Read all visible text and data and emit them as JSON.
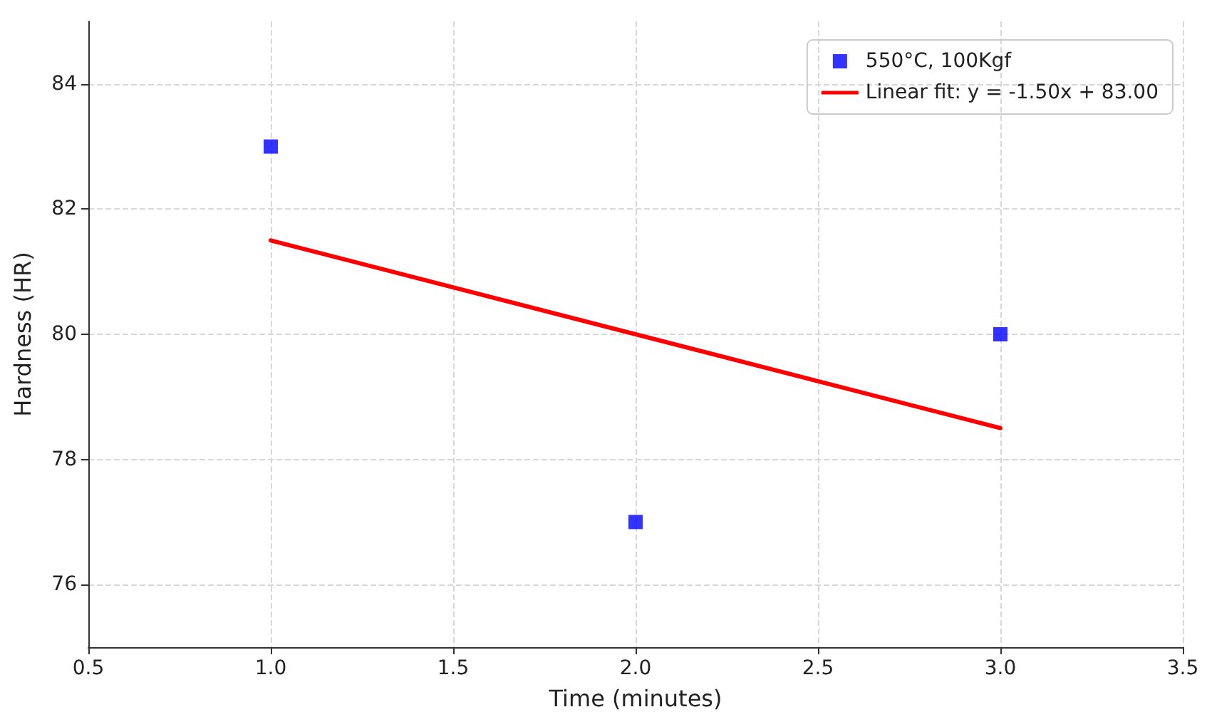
{
  "chart_data": {
    "type": "scatter",
    "xlabel": "Time (minutes)",
    "ylabel": "Hardness (HR)",
    "series": [
      {
        "name": "550°C, 100Kgf",
        "color": "#0000ff",
        "marker": "square",
        "x": [
          1,
          2,
          3
        ],
        "values": [
          83,
          77,
          80
        ]
      },
      {
        "name": "Linear fit: y = -1.50x + 83.00",
        "type": "line",
        "color": "#ff0000",
        "marker": "none",
        "line_style": "solid",
        "x": [
          1,
          3
        ],
        "values": [
          81.5,
          78.5
        ]
      }
    ],
    "xlim": [
      0.5,
      3.5
    ],
    "xticks": [
      {
        "value": 0.5,
        "label": "0.5"
      },
      {
        "value": 1,
        "label": "1.0"
      },
      {
        "value": 1.5,
        "label": "1.5"
      },
      {
        "value": 2,
        "label": "2.0"
      },
      {
        "value": 2.5,
        "label": "2.5"
      },
      {
        "value": 3,
        "label": "3.0"
      },
      {
        "value": 3.5,
        "label": "3.5"
      }
    ],
    "ylim": [
      75,
      85
    ],
    "yticks": [
      76,
      78,
      80,
      82,
      84
    ],
    "grid": true,
    "legend": "top right"
  }
}
